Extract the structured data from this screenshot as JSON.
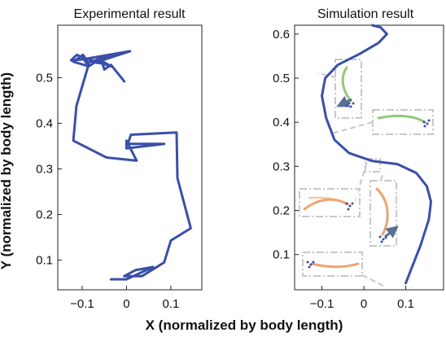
{
  "colors": {
    "trajectory": "#3a4fa8",
    "snapshot_green": "#93c77a",
    "snapshot_orange": "#f0a36f",
    "frame": "#c8c8c8",
    "arrow": "#5a6f92",
    "markers": "#3a4fa8"
  },
  "shared_ylabel": "Y (normalized by body length)",
  "shared_xlabel": "X (normalized by body length)",
  "chart_data": [
    {
      "type": "line",
      "title": "Experimental result",
      "xlim": [
        -0.155,
        0.17
      ],
      "ylim": [
        0.035,
        0.615
      ],
      "grid": false,
      "xticks": [
        -0.1,
        0,
        0.1
      ],
      "xtick_labels": [
        "−0.1",
        "0",
        "0.1"
      ],
      "yticks": [
        0.1,
        0.2,
        0.3,
        0.4,
        0.5
      ],
      "ytick_labels": [
        "0.1",
        "0.2",
        "0.3",
        "0.4",
        "0.5"
      ],
      "series": [
        {
          "x": [
            -0.035,
            0.0,
            0.06,
            0.02,
            -0.005,
            0.035,
            0.06,
            0.085,
            0.1,
            0.145,
            0.115,
            0.113,
            0.01,
            0.003,
            0.085,
            0.0,
            0.0,
            0.023,
            -0.045,
            -0.12,
            -0.113,
            -0.085,
            -0.098,
            -0.12,
            -0.085,
            -0.1,
            -0.035,
            -0.065,
            -0.048,
            -0.083,
            -0.018,
            -0.065,
            0.008,
            -0.1,
            -0.125,
            -0.112,
            -0.1,
            -0.085,
            -0.058,
            -0.05,
            -0.035,
            -0.005
          ],
          "y": [
            0.058,
            0.058,
            0.085,
            0.078,
            0.065,
            0.065,
            0.08,
            0.095,
            0.143,
            0.17,
            0.28,
            0.38,
            0.375,
            0.355,
            0.355,
            0.345,
            0.362,
            0.318,
            0.325,
            0.362,
            0.438,
            0.53,
            0.55,
            0.535,
            0.525,
            0.545,
            0.525,
            0.542,
            0.53,
            0.535,
            0.552,
            0.535,
            0.558,
            0.54,
            0.538,
            0.55,
            0.545,
            0.525,
            0.542,
            0.518,
            0.528,
            0.492
          ]
        }
      ]
    },
    {
      "type": "line",
      "title": "Simulation result",
      "xlim": [
        -0.165,
        0.19
      ],
      "ylim": [
        0.02,
        0.62
      ],
      "grid": false,
      "xticks": [
        -0.1,
        0,
        0.1
      ],
      "xtick_labels": [
        "−0.1",
        "0",
        "0.1"
      ],
      "yticks": [
        0.1,
        0.2,
        0.3,
        0.4,
        0.5,
        0.6
      ],
      "ytick_labels": [
        "0.1",
        "0.2",
        "0.3",
        "0.4",
        "0.5",
        "0.6"
      ],
      "series": [
        {
          "x": [
            0.1,
            0.11,
            0.135,
            0.155,
            0.16,
            0.15,
            0.125,
            0.08,
            0.02,
            -0.035,
            -0.07,
            -0.09,
            -0.1,
            -0.092,
            -0.062,
            -0.01,
            0.035,
            0.055,
            0.04,
            0.02
          ],
          "y": [
            0.035,
            0.06,
            0.12,
            0.18,
            0.22,
            0.255,
            0.285,
            0.305,
            0.312,
            0.33,
            0.36,
            0.41,
            0.46,
            0.5,
            0.53,
            0.555,
            0.58,
            0.6,
            0.615,
            0.62
          ]
        }
      ]
    }
  ]
}
